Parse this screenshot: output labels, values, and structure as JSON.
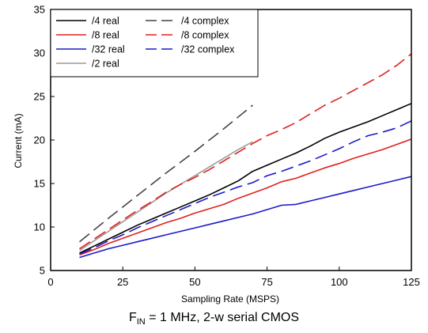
{
  "chart_data": {
    "type": "line",
    "title": "",
    "xlabel": "Sampling Rate (MSPS)",
    "ylabel": "Current (mA)",
    "xlim": [
      0,
      125
    ],
    "ylim": [
      5,
      35
    ],
    "xticks": [
      0,
      25,
      50,
      75,
      100,
      125
    ],
    "yticks": [
      5,
      10,
      15,
      20,
      25,
      30,
      35
    ],
    "grid": false,
    "legend_position": "top-left",
    "series": [
      {
        "name": "/4 real",
        "color": "#000000",
        "dash": "solid",
        "x": [
          10,
          15,
          20,
          25,
          30,
          35,
          40,
          45,
          50,
          55,
          60,
          65,
          70,
          75,
          80,
          85,
          90,
          95,
          100,
          105,
          110,
          115,
          120,
          125
        ],
        "y": [
          7.0,
          7.8,
          8.6,
          9.4,
          10.2,
          10.9,
          11.6,
          12.3,
          13.0,
          13.7,
          14.5,
          15.3,
          16.4,
          17.1,
          17.8,
          18.5,
          19.3,
          20.2,
          20.9,
          21.5,
          22.1,
          22.8,
          23.5,
          24.2
        ]
      },
      {
        "name": "/8 real",
        "color": "#e0201a",
        "dash": "solid",
        "x": [
          10,
          15,
          20,
          25,
          30,
          35,
          40,
          45,
          50,
          55,
          60,
          65,
          70,
          75,
          80,
          85,
          90,
          95,
          100,
          105,
          110,
          115,
          120,
          125
        ],
        "y": [
          6.8,
          7.4,
          8.1,
          8.7,
          9.3,
          9.9,
          10.5,
          11.0,
          11.6,
          12.1,
          12.6,
          13.3,
          13.9,
          14.5,
          15.2,
          15.6,
          16.2,
          16.8,
          17.3,
          17.9,
          18.4,
          18.9,
          19.5,
          20.1
        ]
      },
      {
        "name": "/32 real",
        "color": "#1a1acc",
        "dash": "solid",
        "x": [
          10,
          15,
          20,
          25,
          30,
          35,
          40,
          45,
          50,
          55,
          60,
          65,
          70,
          75,
          80,
          85,
          90,
          95,
          100,
          105,
          110,
          115,
          120,
          125
        ],
        "y": [
          6.5,
          7.0,
          7.5,
          7.9,
          8.3,
          8.7,
          9.1,
          9.5,
          9.9,
          10.3,
          10.7,
          11.1,
          11.5,
          12.0,
          12.5,
          12.6,
          13.0,
          13.4,
          13.8,
          14.2,
          14.6,
          15.0,
          15.4,
          15.8
        ]
      },
      {
        "name": "/2 real",
        "color": "#9a9a9a",
        "dash": "solid",
        "x": [
          10,
          15,
          20,
          25,
          30,
          35,
          40,
          45,
          50,
          55,
          60,
          65,
          70
        ],
        "y": [
          7.3,
          8.4,
          9.5,
          10.6,
          11.7,
          12.8,
          13.9,
          14.9,
          15.9,
          16.9,
          17.9,
          18.9,
          19.8
        ]
      },
      {
        "name": "/4 complex",
        "color": "#444444",
        "dash": "long",
        "x": [
          10,
          20,
          30,
          40,
          50,
          60,
          70
        ],
        "y": [
          8.3,
          11.0,
          13.6,
          16.2,
          18.7,
          21.3,
          24.0
        ]
      },
      {
        "name": "/8 complex",
        "color": "#e0201a",
        "dash": "long",
        "x": [
          10,
          15,
          20,
          25,
          30,
          35,
          40,
          45,
          50,
          55,
          60,
          65,
          70,
          75,
          80,
          85,
          90,
          95,
          100,
          105,
          110,
          115,
          120,
          125
        ],
        "y": [
          7.5,
          8.6,
          9.7,
          10.8,
          11.9,
          12.9,
          14.0,
          14.9,
          15.7,
          16.6,
          17.6,
          18.6,
          19.6,
          20.5,
          21.2,
          22.0,
          23.0,
          24.0,
          24.8,
          25.7,
          26.6,
          27.5,
          28.6,
          29.9
        ]
      },
      {
        "name": "/32 complex",
        "color": "#1a1acc",
        "dash": "long",
        "x": [
          10,
          15,
          20,
          25,
          30,
          35,
          40,
          45,
          50,
          55,
          60,
          65,
          70,
          75,
          80,
          85,
          90,
          95,
          100,
          105,
          110,
          115,
          120,
          125
        ],
        "y": [
          6.9,
          7.6,
          8.4,
          9.1,
          9.9,
          10.6,
          11.3,
          12.0,
          12.7,
          13.4,
          14.0,
          14.6,
          15.1,
          15.9,
          16.4,
          17.0,
          17.6,
          18.3,
          19.0,
          19.8,
          20.5,
          20.9,
          21.4,
          22.2
        ]
      }
    ],
    "legend": [
      {
        "label": "/4 real",
        "color": "#000000",
        "dash": "solid"
      },
      {
        "label": "/4 complex",
        "color": "#444444",
        "dash": "long"
      },
      {
        "label": "/8 real",
        "color": "#e0201a",
        "dash": "solid"
      },
      {
        "label": "/8 complex",
        "color": "#e0201a",
        "dash": "long"
      },
      {
        "label": "/32 real",
        "color": "#1a1acc",
        "dash": "solid"
      },
      {
        "label": "/32 complex",
        "color": "#1a1acc",
        "dash": "long"
      },
      {
        "label": "/2 real",
        "color": "#9a9a9a",
        "dash": "solid"
      }
    ]
  },
  "caption": {
    "prefix": "F",
    "subscript": "IN",
    "suffix": " = 1 MHz, 2-w serial CMOS"
  }
}
